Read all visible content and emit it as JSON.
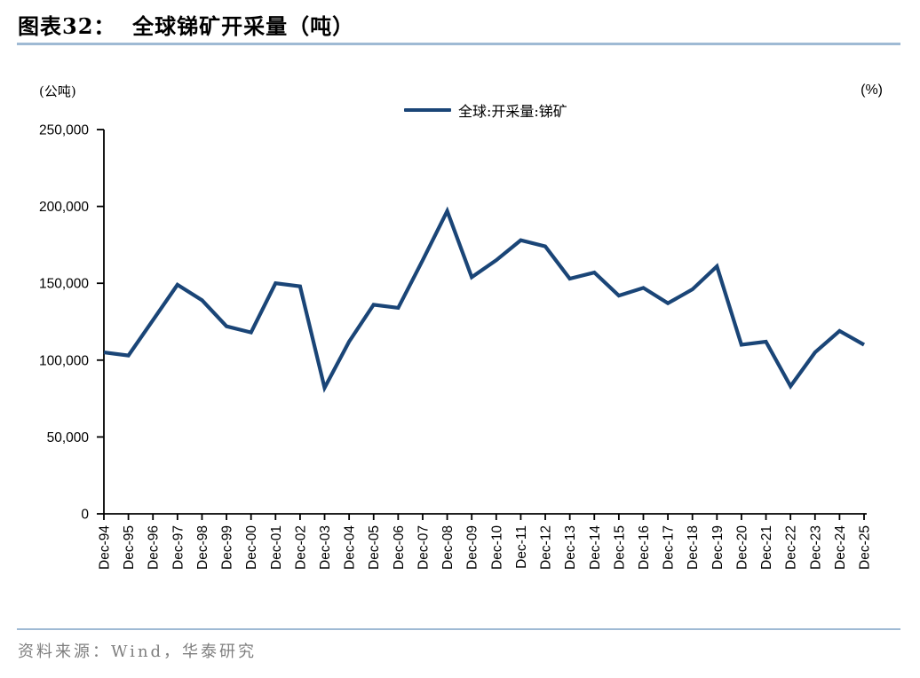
{
  "header": {
    "title": "图表32：  全球锑矿开采量（吨）"
  },
  "axis_units": {
    "left": "(公吨)",
    "right": "(%)"
  },
  "legend": {
    "label": "全球:开采量:锑矿"
  },
  "footer": {
    "source_text": "资料来源：Wind，华泰研究"
  },
  "colors": {
    "series_line": "#1A4577",
    "divider_blue": "#9FBAD4",
    "axis_black": "#000000",
    "footer_gray": "#7f7f7f"
  },
  "chart_data": {
    "type": "line",
    "title": "全球锑矿开采量（吨）",
    "legend_entries": [
      "全球:开采量:锑矿"
    ],
    "legend_position": "top-center",
    "grid": false,
    "xlabel": "",
    "ylabel": "(公吨)",
    "ylabel_right": "(%)",
    "ylim": [
      0,
      250000
    ],
    "ytick_interval": 50000,
    "yticks": [
      0,
      50000,
      100000,
      150000,
      200000,
      250000
    ],
    "categories": [
      "Dec-94",
      "Dec-95",
      "Dec-96",
      "Dec-97",
      "Dec-98",
      "Dec-99",
      "Dec-00",
      "Dec-01",
      "Dec-02",
      "Dec-03",
      "Dec-04",
      "Dec-05",
      "Dec-06",
      "Dec-07",
      "Dec-08",
      "Dec-09",
      "Dec-10",
      "Dec-11",
      "Dec-12",
      "Dec-13",
      "Dec-14",
      "Dec-15",
      "Dec-16",
      "Dec-17",
      "Dec-18",
      "Dec-19",
      "Dec-20",
      "Dec-21",
      "Dec-22",
      "Dec-23",
      "Dec-24",
      "Dec-25"
    ],
    "series": [
      {
        "name": "全球:开采量:锑矿",
        "values": [
          105000,
          103000,
          126000,
          149000,
          139000,
          122000,
          118000,
          150000,
          148000,
          82000,
          112000,
          136000,
          134000,
          165000,
          197000,
          154000,
          165000,
          178000,
          174000,
          153000,
          157000,
          142000,
          147000,
          137000,
          146000,
          161000,
          110000,
          112000,
          83000,
          105000,
          119000,
          110000
        ]
      }
    ]
  }
}
